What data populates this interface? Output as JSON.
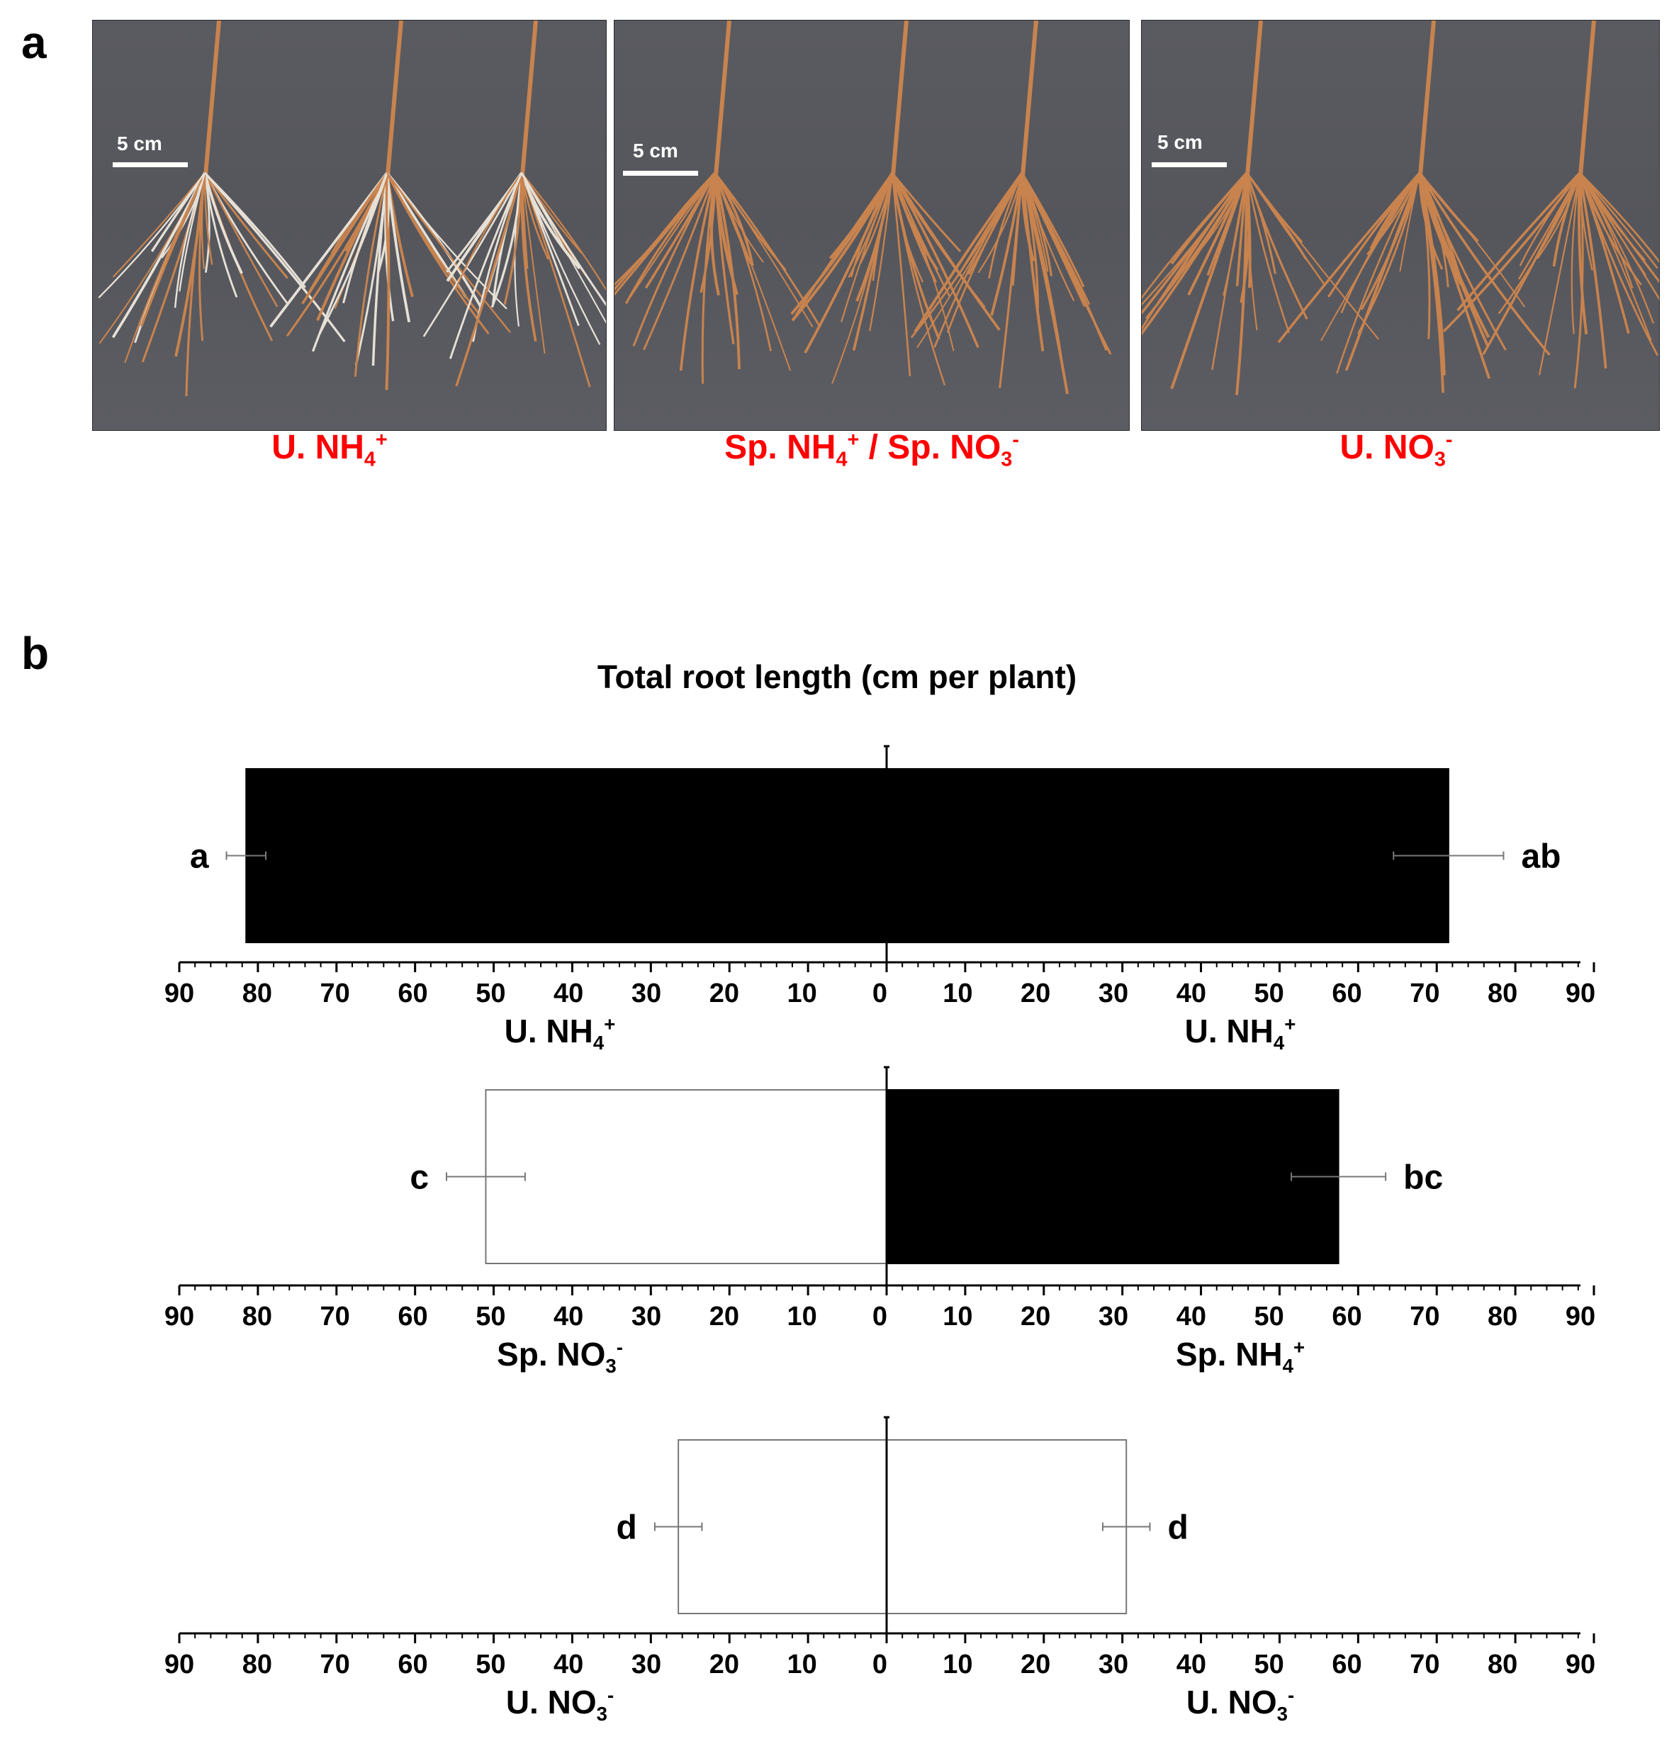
{
  "panel_a": {
    "letter": "a",
    "photos": [
      {
        "scale_label": "5 cm",
        "caption": "U. NH<sub>4</sub><sup>+</sup>"
      },
      {
        "scale_label": "5 cm",
        "caption": "Sp. NH<sub>4</sub><sup>+</sup> / Sp. NO<sub>3</sub><sup>-</sup>"
      },
      {
        "scale_label": "5 cm",
        "caption": "U. NO<sub>3</sub><sup>-</sup>"
      }
    ],
    "colors": {
      "background": "#58595f",
      "root": "#c8834e",
      "caption": "#ff0000"
    }
  },
  "panel_b": {
    "letter": "b"
  },
  "chart_data": {
    "type": "bar",
    "orientation": "horizontal-diverging",
    "title": "Total root length (cm per plant)",
    "axis": {
      "range": [
        0,
        90
      ],
      "major_step": 10,
      "minor_step": 2,
      "tick_labels": [
        "90",
        "80",
        "70",
        "60",
        "50",
        "40",
        "30",
        "20",
        "10",
        "0",
        "10",
        "20",
        "30",
        "40",
        "50",
        "60",
        "70",
        "80",
        "90"
      ]
    },
    "rows": [
      {
        "left": {
          "label": "U. NH<sub>4</sub><sup>+</sup>",
          "value": 81.5,
          "error": 2.5,
          "letter": "a",
          "fill": "#000000"
        },
        "right": {
          "label": "U. NH<sub>4</sub><sup>+</sup>",
          "value": 71.5,
          "error": 7.0,
          "letter": "ab",
          "fill": "#000000"
        }
      },
      {
        "left": {
          "label": "Sp. NO<sub>3</sub><sup>-</sup>",
          "value": 51.0,
          "error": 5.0,
          "letter": "c",
          "fill": "#ffffff"
        },
        "right": {
          "label": "Sp. NH<sub>4</sub><sup>+</sup>",
          "value": 57.5,
          "error": 6.0,
          "letter": "bc",
          "fill": "#000000"
        }
      },
      {
        "left": {
          "label": "U. NO<sub>3</sub><sup>-</sup>",
          "value": 26.5,
          "error": 3.0,
          "letter": "d",
          "fill": "#ffffff"
        },
        "right": {
          "label": "U. NO<sub>3</sub><sup>-</sup>",
          "value": 30.5,
          "error": 3.0,
          "letter": "d",
          "fill": "#ffffff"
        }
      }
    ],
    "grid": false,
    "legend": "none"
  }
}
